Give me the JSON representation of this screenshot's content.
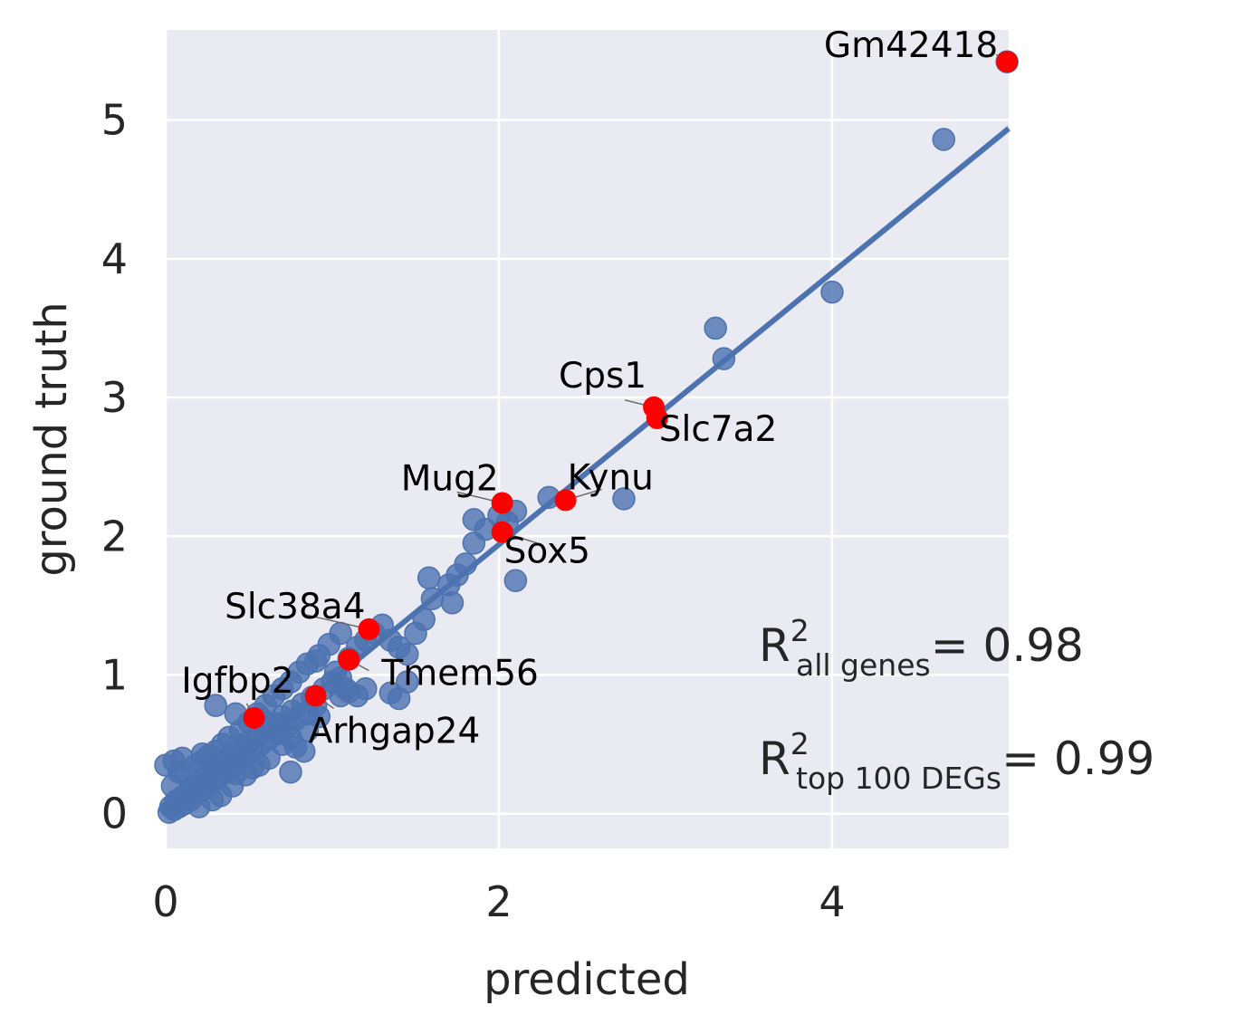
{
  "chart_data": {
    "type": "scatter",
    "xlabel": "predicted",
    "ylabel": "ground truth",
    "xlim": [
      0,
      5.06
    ],
    "ylim": [
      -0.25,
      5.65
    ],
    "x_ticks": [
      "0",
      "2",
      "4"
    ],
    "y_ticks": [
      "0",
      "1",
      "2",
      "3",
      "4",
      "5"
    ],
    "grid": true,
    "colors": {
      "background": "#eaeaf2",
      "points": "#4c72b0",
      "highlight": "#ff0000",
      "regression": "#4c72b0",
      "grid": "#ffffff"
    },
    "regression": {
      "intercept": -0.02,
      "slope": 0.98
    },
    "points": [
      [
        0.02,
        0.01
      ],
      [
        0.03,
        0.05
      ],
      [
        0.05,
        0.03
      ],
      [
        0.06,
        0.09
      ],
      [
        0.08,
        0.05
      ],
      [
        0.1,
        0.12
      ],
      [
        0.11,
        0.07
      ],
      [
        0.13,
        0.15
      ],
      [
        0.15,
        0.1
      ],
      [
        0.16,
        0.2
      ],
      [
        0.18,
        0.14
      ],
      [
        0.2,
        0.22
      ],
      [
        0.22,
        0.17
      ],
      [
        0.24,
        0.26
      ],
      [
        0.25,
        0.2
      ],
      [
        0.27,
        0.3
      ],
      [
        0.29,
        0.23
      ],
      [
        0.3,
        0.33
      ],
      [
        0.32,
        0.27
      ],
      [
        0.34,
        0.37
      ],
      [
        0.36,
        0.3
      ],
      [
        0.38,
        0.4
      ],
      [
        0.4,
        0.34
      ],
      [
        0.42,
        0.44
      ],
      [
        0.44,
        0.38
      ],
      [
        0.46,
        0.48
      ],
      [
        0.48,
        0.42
      ],
      [
        0.5,
        0.52
      ],
      [
        0.52,
        0.46
      ],
      [
        0.55,
        0.55
      ],
      [
        0.57,
        0.5
      ],
      [
        0.6,
        0.6
      ],
      [
        0.62,
        0.54
      ],
      [
        0.65,
        0.64
      ],
      [
        0.68,
        0.58
      ],
      [
        0.7,
        0.7
      ],
      [
        0.73,
        0.63
      ],
      [
        0.76,
        0.74
      ],
      [
        0.78,
        0.68
      ],
      [
        0.82,
        0.79
      ],
      [
        0.85,
        0.72
      ],
      [
        0.88,
        0.84
      ],
      [
        0.9,
        0.78
      ],
      [
        0.95,
        0.9
      ],
      [
        0.04,
        0.2
      ],
      [
        0.08,
        0.3
      ],
      [
        0.12,
        0.28
      ],
      [
        0.18,
        0.35
      ],
      [
        0.22,
        0.38
      ],
      [
        0.26,
        0.42
      ],
      [
        0.3,
        0.45
      ],
      [
        0.34,
        0.5
      ],
      [
        0.38,
        0.55
      ],
      [
        0.45,
        0.6
      ],
      [
        0.5,
        0.66
      ],
      [
        0.55,
        0.72
      ],
      [
        0.6,
        0.78
      ],
      [
        0.65,
        0.85
      ],
      [
        0.7,
        0.9
      ],
      [
        0.75,
        0.95
      ],
      [
        0.8,
        1.02
      ],
      [
        0.85,
        1.08
      ],
      [
        0.9,
        1.1
      ],
      [
        0.2,
        0.05
      ],
      [
        0.28,
        0.1
      ],
      [
        0.33,
        0.13
      ],
      [
        0.4,
        0.2
      ],
      [
        0.48,
        0.28
      ],
      [
        0.56,
        0.35
      ],
      [
        0.62,
        0.4
      ],
      [
        0.7,
        0.5
      ],
      [
        0.75,
        0.55
      ],
      [
        0.78,
        0.48
      ],
      [
        0.85,
        0.6
      ],
      [
        0.92,
        0.7
      ],
      [
        0.0,
        0.35
      ],
      [
        0.05,
        0.38
      ],
      [
        0.1,
        0.4
      ],
      [
        0.22,
        0.43
      ],
      [
        0.42,
        0.29
      ],
      [
        0.52,
        0.33
      ],
      [
        0.3,
        0.78
      ],
      [
        0.42,
        0.72
      ],
      [
        0.58,
        0.68
      ],
      [
        0.68,
        0.65
      ],
      [
        0.75,
        0.3
      ],
      [
        0.83,
        0.45
      ],
      [
        1.0,
        0.95
      ],
      [
        1.02,
        1.02
      ],
      [
        1.05,
        0.98
      ],
      [
        1.08,
        0.9
      ],
      [
        0.92,
        1.14
      ],
      [
        0.98,
        1.22
      ],
      [
        1.05,
        1.3
      ],
      [
        1.1,
        1.12
      ],
      [
        1.15,
        1.2
      ],
      [
        1.2,
        1.25
      ],
      [
        1.25,
        1.3
      ],
      [
        1.3,
        1.36
      ],
      [
        1.35,
        1.25
      ],
      [
        1.4,
        1.2
      ],
      [
        1.45,
        1.15
      ],
      [
        1.05,
        0.85
      ],
      [
        1.1,
        0.88
      ],
      [
        1.15,
        0.85
      ],
      [
        1.2,
        0.9
      ],
      [
        1.35,
        0.87
      ],
      [
        1.4,
        0.83
      ],
      [
        1.45,
        0.95
      ],
      [
        1.5,
        1.3
      ],
      [
        1.55,
        1.4
      ],
      [
        1.6,
        1.55
      ],
      [
        1.58,
        1.7
      ],
      [
        1.7,
        1.65
      ],
      [
        1.75,
        1.72
      ],
      [
        1.72,
        1.52
      ],
      [
        1.8,
        1.8
      ],
      [
        1.85,
        1.95
      ],
      [
        1.92,
        2.05
      ],
      [
        1.85,
        2.12
      ],
      [
        2.0,
        2.15
      ],
      [
        2.05,
        2.1
      ],
      [
        2.1,
        2.18
      ],
      [
        2.1,
        1.68
      ],
      [
        2.3,
        2.28
      ],
      [
        2.75,
        2.27
      ],
      [
        3.3,
        3.5
      ],
      [
        3.35,
        3.28
      ],
      [
        4.0,
        3.76
      ],
      [
        4.67,
        4.86
      ],
      [
        5.05,
        5.42
      ]
    ],
    "highlights": [
      {
        "name": "Gm42418",
        "x": 5.05,
        "y": 5.42
      },
      {
        "name": "Cps1",
        "x": 2.93,
        "y": 2.93
      },
      {
        "name": "Slc7a2",
        "x": 2.95,
        "y": 2.85
      },
      {
        "name": "Mug2",
        "x": 2.02,
        "y": 2.24
      },
      {
        "name": "Kynu",
        "x": 2.4,
        "y": 2.26
      },
      {
        "name": "Sox5",
        "x": 2.02,
        "y": 2.03
      },
      {
        "name": "Slc38a4",
        "x": 1.22,
        "y": 1.33
      },
      {
        "name": "Tmem56",
        "x": 1.1,
        "y": 1.11
      },
      {
        "name": "Igfbp2",
        "x": 0.53,
        "y": 0.69
      },
      {
        "name": "Arhgap24",
        "x": 0.9,
        "y": 0.85
      }
    ],
    "r2_annotations": [
      {
        "base": "R",
        "sup": "2",
        "sub": "all genes",
        "text": "= 0.98"
      },
      {
        "base": "R",
        "sup": "2",
        "sub": "top 100 DEGs",
        "text": "= 0.99"
      }
    ]
  }
}
